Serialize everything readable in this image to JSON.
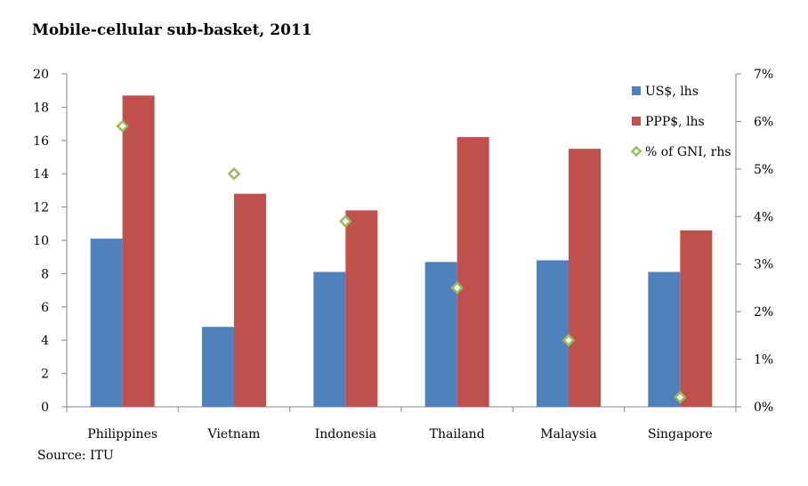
{
  "chart_data": {
    "type": "bar",
    "title": "Mobile-cellular sub-basket, 2011",
    "source": "Source: ITU",
    "categories": [
      "Philippines",
      "Vietnam",
      "Indonesia",
      "Thailand",
      "Malaysia",
      "Singapore"
    ],
    "series": [
      {
        "name": "US$, lhs",
        "type": "bar",
        "axis": "left",
        "color": "#4f81bd",
        "values": [
          10.1,
          4.8,
          8.1,
          8.7,
          8.8,
          8.1
        ]
      },
      {
        "name": "PPP$, lhs",
        "type": "bar",
        "axis": "left",
        "color": "#c0504d",
        "values": [
          18.7,
          12.8,
          11.8,
          16.2,
          15.5,
          10.6
        ]
      },
      {
        "name": "% of GNI, rhs",
        "type": "scatter",
        "axis": "right",
        "color": "#9bbb59",
        "marker": "diamond-hollow",
        "values": [
          5.9,
          4.9,
          3.9,
          2.5,
          1.4,
          0.2
        ]
      }
    ],
    "y_left": {
      "ylim": [
        0,
        20
      ],
      "ticks": [
        "0",
        "2",
        "4",
        "6",
        "8",
        "10",
        "12",
        "14",
        "16",
        "18",
        "20"
      ]
    },
    "y_right": {
      "ylim": [
        0,
        7
      ],
      "ticks": [
        "0%",
        "1%",
        "2%",
        "3%",
        "4%",
        "5%",
        "6%",
        "7%"
      ]
    },
    "grid": false,
    "legend_position": "top-right"
  }
}
